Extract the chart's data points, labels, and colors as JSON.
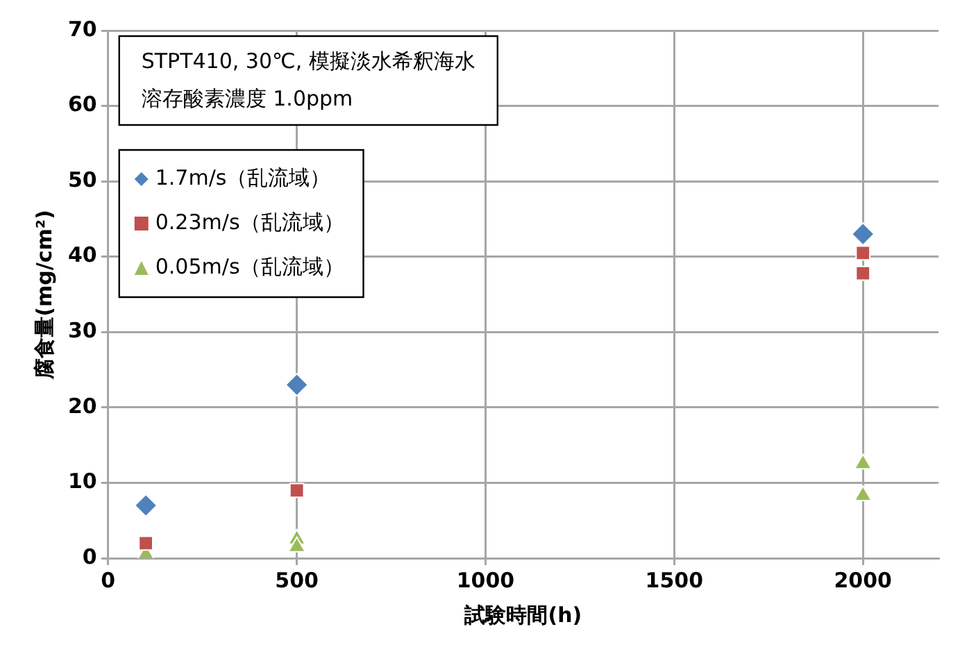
{
  "chart_data": {
    "type": "scatter",
    "xlabel": "試験時間(h)",
    "ylabel": "腐食量(mg/cm²)",
    "annotations": [
      "STPT410, 30℃, 模擬淡水希釈海水",
      "溶存酸素濃度 1.0ppm"
    ],
    "series": [
      {
        "name": "1.7m/s（乱流域）",
        "color": "#4f81bd",
        "marker": "diamond",
        "x": [
          100,
          500,
          2000
        ],
        "values": [
          7,
          23,
          43
        ]
      },
      {
        "name": "0.23m/s（乱流域）",
        "color": "#c0504d",
        "marker": "square",
        "x": [
          100,
          500,
          2000,
          2000
        ],
        "values": [
          2,
          9,
          40.5,
          37.8
        ]
      },
      {
        "name": "0.05m/s（乱流域）",
        "color": "#9bbb59",
        "marker": "triangle",
        "x": [
          100,
          500,
          500,
          2000,
          2000
        ],
        "values": [
          0.5,
          2.5,
          1.5,
          12.5,
          8.3
        ]
      }
    ],
    "xlim": [
      0,
      2200
    ],
    "xticks": [
      0,
      500,
      1000,
      1500,
      2000
    ],
    "ylim": [
      0,
      70
    ],
    "yticks": [
      0,
      10,
      20,
      30,
      40,
      50,
      60,
      70
    ],
    "grid": true,
    "legend": "top left"
  }
}
